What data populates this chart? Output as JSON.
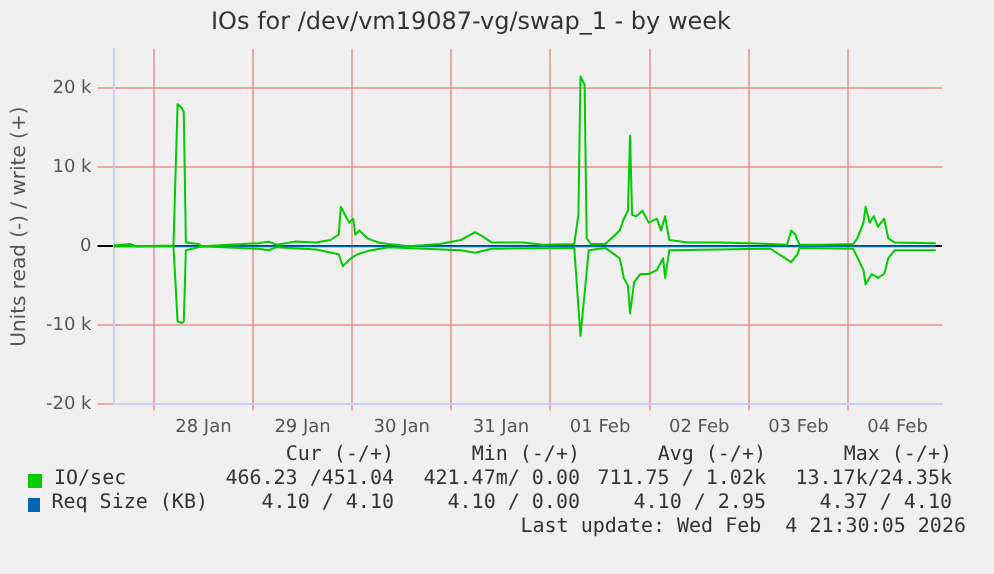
{
  "chart_data": {
    "type": "line",
    "title": "IOs for /dev/vm19087-vg/swap_1 - by week",
    "ylabel": "Units read (-) / write (+)",
    "xlim": [
      "2026-01-27T14:15",
      "2026-02-04T22:45"
    ],
    "xticks": [
      {
        "value": "2026-01-28T00:00",
        "label": null
      },
      {
        "value": "2026-01-28T12:00",
        "label": "28 Jan"
      },
      {
        "value": "2026-01-29T00:00",
        "label": null
      },
      {
        "value": "2026-01-29T12:00",
        "label": "29 Jan"
      },
      {
        "value": "2026-01-30T00:00",
        "label": null
      },
      {
        "value": "2026-01-30T12:00",
        "label": "30 Jan"
      },
      {
        "value": "2026-01-31T00:00",
        "label": null
      },
      {
        "value": "2026-01-31T12:00",
        "label": "31 Jan"
      },
      {
        "value": "2026-02-01T00:00",
        "label": null
      },
      {
        "value": "2026-02-01T12:00",
        "label": "01 Feb"
      },
      {
        "value": "2026-02-02T00:00",
        "label": null
      },
      {
        "value": "2026-02-02T12:00",
        "label": "02 Feb"
      },
      {
        "value": "2026-02-03T00:00",
        "label": null
      },
      {
        "value": "2026-02-03T12:00",
        "label": "03 Feb"
      },
      {
        "value": "2026-02-04T00:00",
        "label": null
      },
      {
        "value": "2026-02-04T12:00",
        "label": "04 Feb"
      }
    ],
    "ylim": [
      -20000,
      25000
    ],
    "yticks": [
      {
        "value": -20000,
        "label": "-20 k"
      },
      {
        "value": -10000,
        "label": "-10 k"
      },
      0,
      {
        "value": 10000,
        "label": "10 k"
      },
      {
        "value": 20000,
        "label": "20 k"
      }
    ],
    "grid": true,
    "legend": "bottom",
    "series": [
      {
        "name": "IO/sec",
        "color": "#00cc00",
        "x": [
          "2026-01-27T14:15",
          "2026-01-27T18:15",
          "2026-01-27T19:45",
          "2026-01-28T04:45",
          "2026-01-28T05:45",
          "2026-01-28T06:45",
          "2026-01-28T07:15",
          "2026-01-28T07:45",
          "2026-01-28T10:45",
          "2026-01-28T11:45",
          "2026-01-29T01:15",
          "2026-01-29T03:45",
          "2026-01-29T05:45",
          "2026-01-29T10:15",
          "2026-01-29T15:15",
          "2026-01-29T18:45",
          "2026-01-29T20:45",
          "2026-01-29T21:15",
          "2026-01-29T22:15",
          "2026-01-29T23:15",
          "2026-01-30T00:15",
          "2026-01-30T00:45",
          "2026-01-30T01:45",
          "2026-01-30T03:45",
          "2026-01-30T06:15",
          "2026-01-30T08:45",
          "2026-01-30T13:45",
          "2026-01-30T21:15",
          "2026-01-31T02:15",
          "2026-01-31T05:45",
          "2026-01-31T07:45",
          "2026-01-31T09:45",
          "2026-01-31T17:15",
          "2026-01-31T22:15",
          "2026-02-01T05:45",
          "2026-02-01T06:45",
          "2026-02-01T07:15",
          "2026-02-01T08:15",
          "2026-02-01T08:45",
          "2026-02-01T09:45",
          "2026-02-01T13:15",
          "2026-02-01T16:45",
          "2026-02-01T17:45",
          "2026-02-01T18:45",
          "2026-02-01T19:15",
          "2026-02-01T19:45",
          "2026-02-01T20:45",
          "2026-02-01T22:15",
          "2026-02-01T23:45",
          "2026-02-02T01:45",
          "2026-02-02T02:45",
          "2026-02-02T03:45",
          "2026-02-02T04:45",
          "2026-02-02T09:15",
          "2026-02-02T16:45",
          "2026-02-03T00:15",
          "2026-02-03T05:15",
          "2026-02-03T09:15",
          "2026-02-03T10:15",
          "2026-02-03T11:15",
          "2026-02-03T12:15",
          "2026-02-03T17:45",
          "2026-02-04T01:15",
          "2026-02-04T02:15",
          "2026-02-04T03:45",
          "2026-02-04T04:15",
          "2026-02-04T05:15",
          "2026-02-04T06:15",
          "2026-02-04T07:15",
          "2026-02-04T08:45",
          "2026-02-04T09:45",
          "2026-02-04T11:15",
          "2026-02-04T21:15"
        ],
        "values": [
          100,
          300,
          0,
          100,
          18000,
          17500,
          17000,
          500,
          300,
          0,
          400,
          600,
          200,
          600,
          500,
          800,
          1500,
          5000,
          4000,
          3000,
          3500,
          1500,
          2000,
          1000,
          500,
          300,
          0,
          300,
          800,
          1800,
          1200,
          500,
          500,
          200,
          300,
          4000,
          21500,
          20500,
          1000,
          300,
          300,
          2000,
          3500,
          4500,
          14000,
          4000,
          3800,
          4500,
          3000,
          3500,
          2000,
          3800,
          800,
          500,
          500,
          400,
          300,
          200,
          2000,
          1500,
          200,
          200,
          300,
          1000,
          3000,
          5000,
          3000,
          3800,
          2500,
          3500,
          1000,
          500,
          400
        ]
      },
      {
        "color": "#00cc00",
        "x": [
          "2026-01-27T14:15",
          "2026-01-28T04:45",
          "2026-01-28T05:45",
          "2026-01-28T06:45",
          "2026-01-28T07:15",
          "2026-01-28T07:45",
          "2026-01-28T11:45",
          "2026-01-29T01:15",
          "2026-01-29T03:45",
          "2026-01-29T05:45",
          "2026-01-29T15:15",
          "2026-01-29T20:45",
          "2026-01-29T21:45",
          "2026-01-29T22:45",
          "2026-01-29T23:45",
          "2026-01-30T01:15",
          "2026-01-30T03:45",
          "2026-01-30T08:45",
          "2026-01-31T02:15",
          "2026-01-31T05:45",
          "2026-01-31T09:45",
          "2026-02-01T05:45",
          "2026-02-01T07:15",
          "2026-02-01T08:15",
          "2026-02-01T09:15",
          "2026-02-01T13:15",
          "2026-02-01T16:45",
          "2026-02-01T17:45",
          "2026-02-01T18:45",
          "2026-02-01T19:15",
          "2026-02-01T20:15",
          "2026-02-01T21:45",
          "2026-02-01T23:45",
          "2026-02-02T01:45",
          "2026-02-02T03:15",
          "2026-02-02T03:45",
          "2026-02-02T04:45",
          "2026-02-02T16:45",
          "2026-02-03T05:15",
          "2026-02-03T10:15",
          "2026-02-03T11:45",
          "2026-02-03T12:15",
          "2026-02-04T01:15",
          "2026-02-04T03:45",
          "2026-02-04T04:15",
          "2026-02-04T05:45",
          "2026-02-04T07:15",
          "2026-02-04T08:45",
          "2026-02-04T09:45",
          "2026-02-04T11:15",
          "2026-02-04T21:15"
        ],
        "values": [
          0,
          0,
          -9500,
          -9700,
          -9500,
          -500,
          0,
          -300,
          -500,
          -100,
          -400,
          -1000,
          -2500,
          -2000,
          -1500,
          -1000,
          -600,
          -100,
          -500,
          -800,
          -300,
          -200,
          -11300,
          -6000,
          -500,
          -200,
          -1500,
          -4000,
          -5000,
          -8500,
          -4500,
          -3500,
          -3500,
          -3000,
          -1500,
          -4000,
          -500,
          -400,
          -300,
          -2000,
          -1000,
          -200,
          -300,
          -3000,
          -4800,
          -3500,
          -4000,
          -3500,
          -1500,
          -500,
          -500
        ]
      },
      {
        "name": "Req Size (KB)",
        "color": "#0066b3",
        "x": [
          "2026-01-27T14:15",
          "2026-02-04T21:15"
        ],
        "values": [
          4.1,
          4.1
        ]
      }
    ],
    "annotations": [
      "Cur (-/+)",
      "Min (-/+)",
      "Avg (-/+)",
      "Max (-/+)",
      "466.23 /451.04",
      "421.47m/ 0.00",
      "711.75 / 1.02k",
      "13.17k/24.35k",
      "4.10 / 4.10",
      "4.10 / 0.00",
      "4.10 / 2.95",
      "4.37 / 4.10",
      "Last update: Wed Feb  4 21:30:05 2026"
    ]
  }
}
